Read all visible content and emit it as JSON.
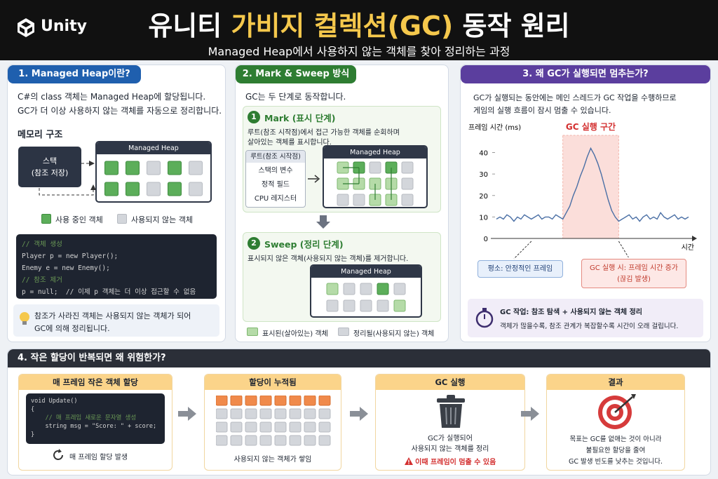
{
  "header": {
    "logo": "Unity",
    "title": [
      "유니티",
      "가비지 컬렉션(GC)",
      "동작 원리"
    ],
    "subtitle": "Managed Heap에서 사용하지 않는 객체를 찾아 정리하는 과정"
  },
  "panel1": {
    "title": "1. Managed Heap이란?",
    "intro": [
      "C#의 class 객체는 Managed Heap에 할당됩니다.",
      "GC가 더 이상 사용하지 않는 객체를 자동으로 정리합니다."
    ],
    "memory_heading": "메모리 구조",
    "stack_label": [
      "스택",
      "(참조 저장)"
    ],
    "heap_label": "Managed Heap",
    "legend": [
      "사용 중인 객체",
      "사용되지 않는 객체"
    ],
    "code": [
      "// 객체 생성",
      "Player p = new Player();",
      "Enemy e = new Enemy();",
      "// 참조 제거",
      "p = null;  // 이제 p 객체는 더 이상 접근할 수 없음"
    ],
    "tip": [
      "참조가 사라진 객체는 사용되지 않는 객체가 되어",
      "GC에 의해 정리됩니다."
    ]
  },
  "panel2": {
    "title": "2. Mark & Sweep 방식",
    "intro": "GC는 두 단계로 동작합니다.",
    "mark": {
      "number": "1",
      "title": "Mark (표시 단계)",
      "desc": [
        "루트(참조 시작점)에서 접근 가능한 객체를 순회하며",
        "살아있는 객체를 표시합니다."
      ],
      "roots_title": "루트(참조 시작점)",
      "roots": [
        "스택의 변수",
        "정적 필드",
        "CPU 레지스터"
      ],
      "heap_label": "Managed Heap"
    },
    "sweep": {
      "number": "2",
      "title": "Sweep (정리 단계)",
      "desc": "표시되지 않은 객체(사용되지 않는 객체)를 제거합니다.",
      "heap_label": "Managed Heap"
    },
    "legend": [
      "표시된(살아있는) 객체",
      "정리될(사용되지 않는) 객체"
    ]
  },
  "panel3": {
    "title": "3. 왜 GC가 실행되면 멈추는가?",
    "intro": [
      "GC가 실행되는 동안에는 메인 스레드가 GC 작업을 수행하므로",
      "게임의 실행 흐름이 잠시 멈출 수 있습니다."
    ],
    "chart": {
      "type": "line",
      "y_label": "프레임 시간 (ms)",
      "x_label": "시간",
      "gc_label": "GC 실행 구간",
      "ylim": [
        0,
        48
      ],
      "yticks": [
        0,
        10,
        20,
        30,
        40
      ],
      "gc_span": [
        19,
        35
      ],
      "color": "#4a6fa5",
      "values": [
        9,
        10,
        9,
        11,
        10,
        8,
        10,
        9,
        11,
        10,
        9,
        10,
        11,
        9,
        10,
        10,
        9,
        11,
        10,
        9,
        12,
        15,
        20,
        24,
        29,
        33,
        38,
        42,
        39,
        35,
        30,
        24,
        18,
        13,
        10,
        8,
        9,
        10,
        11,
        9,
        10,
        8,
        10,
        11,
        9,
        10,
        9,
        12,
        10,
        9,
        10,
        11,
        9,
        10,
        9,
        10
      ]
    },
    "normal_label": "평소: 안정적인 프레임",
    "gc_label": [
      "GC 실행 시: 프레임 시간 증가",
      "(끊김 발생)"
    ],
    "note": {
      "title": "GC 작업: 참조 탐색 + 사용되지 않는 객체 정리",
      "text": "객체가 많을수록, 참조 관계가 복잡할수록 시간이 오래 걸립니다."
    }
  },
  "panel4": {
    "title": "4. 작은 할당이 반복되면 왜 위험한가?",
    "steps": [
      {
        "title": "매 프레임 작은 객체 할당",
        "code": [
          "void Update()",
          "{",
          "    // 매 프레임 새로운 문자열 생성",
          "    string msg = \"Score: \" + score;",
          "}"
        ],
        "caption": "매 프레임 할당 발생"
      },
      {
        "title": "할당이 누적됨",
        "caption": "사용되지 않는 객체가 쌓임"
      },
      {
        "title": "GC 실행",
        "text": [
          "GC가 실행되어",
          "사용되지 않는 객체를 정리"
        ],
        "warning": "이때 프레임이 멈출 수 있음"
      },
      {
        "title": "결과",
        "text": [
          "목표는 GC를 없애는 것이 아니라",
          "불필요한 할당을 줄여",
          "GC 발생 빈도를 낮추는 것입니다."
        ]
      }
    ]
  }
}
